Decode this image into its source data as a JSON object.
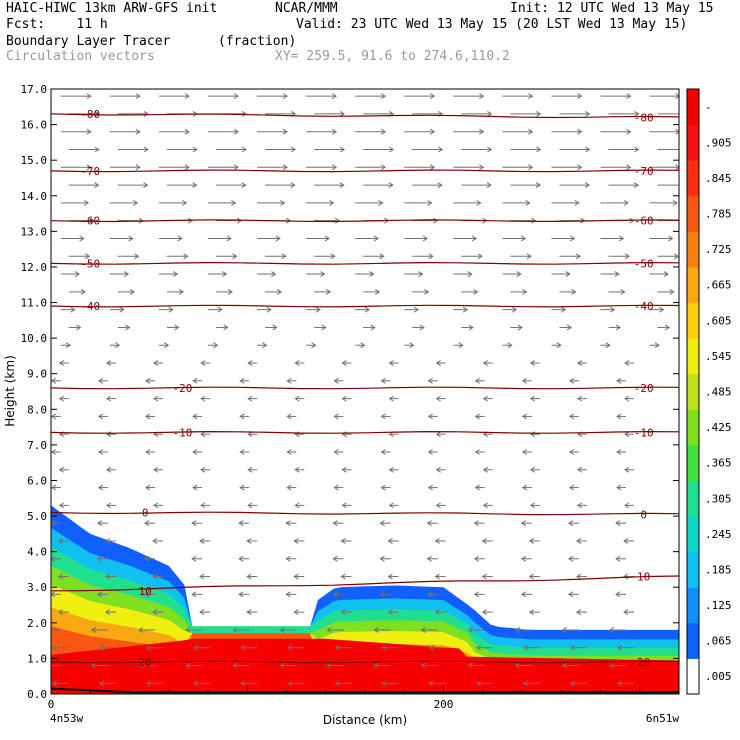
{
  "header": {
    "title_left": "HAIC-HIWC 13km ARW-GFS init",
    "org": "NCAR/MMM",
    "init": "Init: 12 UTC Wed 13 May 15",
    "fcst": "Fcst:    11 h",
    "valid": "Valid: 23 UTC Wed 13 May 15 (20 LST Wed 13 May 15)",
    "field_name": "Boundary Layer Tracer",
    "field_units": "(fraction)",
    "vectors_label": "Circulation vectors",
    "xy_info": "XY= 259.5, 91.6 to 274.6,110.2"
  },
  "chart_data": {
    "type": "heatmap",
    "xlabel": "Distance (km)",
    "ylabel": "Height (km)",
    "xlim": [
      0,
      320
    ],
    "ylim": [
      0,
      17
    ],
    "x_ticks": [
      {
        "v": 0,
        "label": "0"
      },
      {
        "v": 200,
        "label": "200"
      }
    ],
    "x_end_labels": {
      "left": "4n53w",
      "right": "6n51w"
    },
    "y_ticks": [
      "0.0",
      "1.0",
      "2.0",
      "3.0",
      "4.0",
      "5.0",
      "6.0",
      "7.0",
      "8.0",
      "9.0",
      "10.0",
      "11.0",
      "12.0",
      "13.0",
      "14.0",
      "15.0",
      "16.0",
      "17.0"
    ],
    "colorbar": {
      "labels": [
        ".005",
        ".065",
        ".125",
        ".185",
        ".245",
        ".305",
        ".365",
        ".425",
        ".485",
        ".545",
        ".605",
        ".665",
        ".725",
        ".785",
        ".845",
        ".905",
        "-"
      ],
      "colors": [
        "#ffffff",
        "#1060ff",
        "#1090ff",
        "#10c0f0",
        "#10d8c8",
        "#20e090",
        "#40e040",
        "#80e020",
        "#c0e020",
        "#f0f010",
        "#f8d010",
        "#f8a810",
        "#f88010",
        "#f85810",
        "#f83010",
        "#f81010",
        "#f80000"
      ]
    },
    "tracer_top_km": [
      [
        0,
        5.3
      ],
      [
        10,
        4.9
      ],
      [
        20,
        4.5
      ],
      [
        40,
        4.1
      ],
      [
        60,
        3.6
      ],
      [
        75,
        2.6
      ],
      [
        80,
        2.0
      ],
      [
        110,
        2.0
      ],
      [
        125,
        2.0
      ],
      [
        135,
        2.6
      ],
      [
        145,
        3.0
      ],
      [
        175,
        3.05
      ],
      [
        200,
        3.0
      ],
      [
        215,
        2.4
      ],
      [
        225,
        1.9
      ],
      [
        245,
        1.8
      ],
      [
        320,
        1.8
      ]
    ],
    "isotherms_c": [
      {
        "label": "-80",
        "z0": 16.3,
        "z1": 16.2
      },
      {
        "label": "-70",
        "z0": 14.7,
        "z1": 14.7
      },
      {
        "label": "-60",
        "z0": 13.3,
        "z1": 13.3
      },
      {
        "label": "-50",
        "z0": 12.1,
        "z1": 12.1
      },
      {
        "label": "-40",
        "z0": 10.9,
        "z1": 10.9
      },
      {
        "label": "-20",
        "z0": 8.6,
        "z1": 8.6
      },
      {
        "label": "-10",
        "z0": 7.35,
        "z1": 7.35
      },
      {
        "label": "0",
        "z0": 5.1,
        "z1": 5.05
      },
      {
        "label": "10",
        "z0": 2.9,
        "z1": 3.3
      },
      {
        "label": "20",
        "z0": 0.9,
        "z1": 0.9
      }
    ],
    "wind_vectors": "westerly aloft (above ~9 km), easterly in lower levels"
  }
}
